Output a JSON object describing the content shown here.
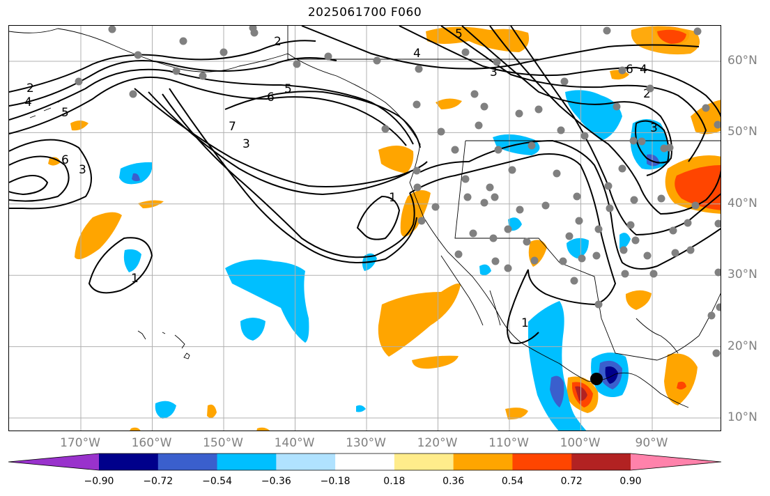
{
  "title": "2025061700 F060",
  "map": {
    "lat_labels": [
      {
        "text": "60°N",
        "lat": 60
      },
      {
        "text": "50°N",
        "lat": 50
      },
      {
        "text": "40°N",
        "lat": 40
      },
      {
        "text": "30°N",
        "lat": 30
      },
      {
        "text": "20°N",
        "lat": 20
      },
      {
        "text": "10°N",
        "lat": 10
      }
    ],
    "lon_labels": [
      {
        "text": "170°W",
        "lon": -170
      },
      {
        "text": "160°W",
        "lon": -160
      },
      {
        "text": "150°W",
        "lon": -150
      },
      {
        "text": "140°W",
        "lon": -140
      },
      {
        "text": "130°W",
        "lon": -130
      },
      {
        "text": "120°W",
        "lon": -120
      },
      {
        "text": "110°W",
        "lon": -110
      },
      {
        "text": "100°W",
        "lon": -100
      },
      {
        "text": "90°W",
        "lon": -90
      }
    ],
    "contour_labels": [
      "2",
      "4",
      "5",
      "6",
      "3",
      "1",
      "2",
      "3",
      "5",
      "6",
      "7",
      "3",
      "1",
      "1",
      "4",
      "5",
      "6",
      "4",
      "2",
      "3"
    ],
    "tick_color": "#808080",
    "grid": true
  },
  "colorbar": {
    "labels": [
      "−0.90",
      "−0.72",
      "−0.54",
      "−0.36",
      "−0.18",
      "0.18",
      "0.36",
      "0.54",
      "0.72",
      "0.90"
    ],
    "colors": [
      "#9932cc",
      "#00008b",
      "#3a5fcd",
      "#00bfff",
      "#b0e2ff",
      "#ffffff",
      "#ffec8b",
      "#ffa500",
      "#ff4500",
      "#b22222",
      "#ff82ab"
    ]
  }
}
